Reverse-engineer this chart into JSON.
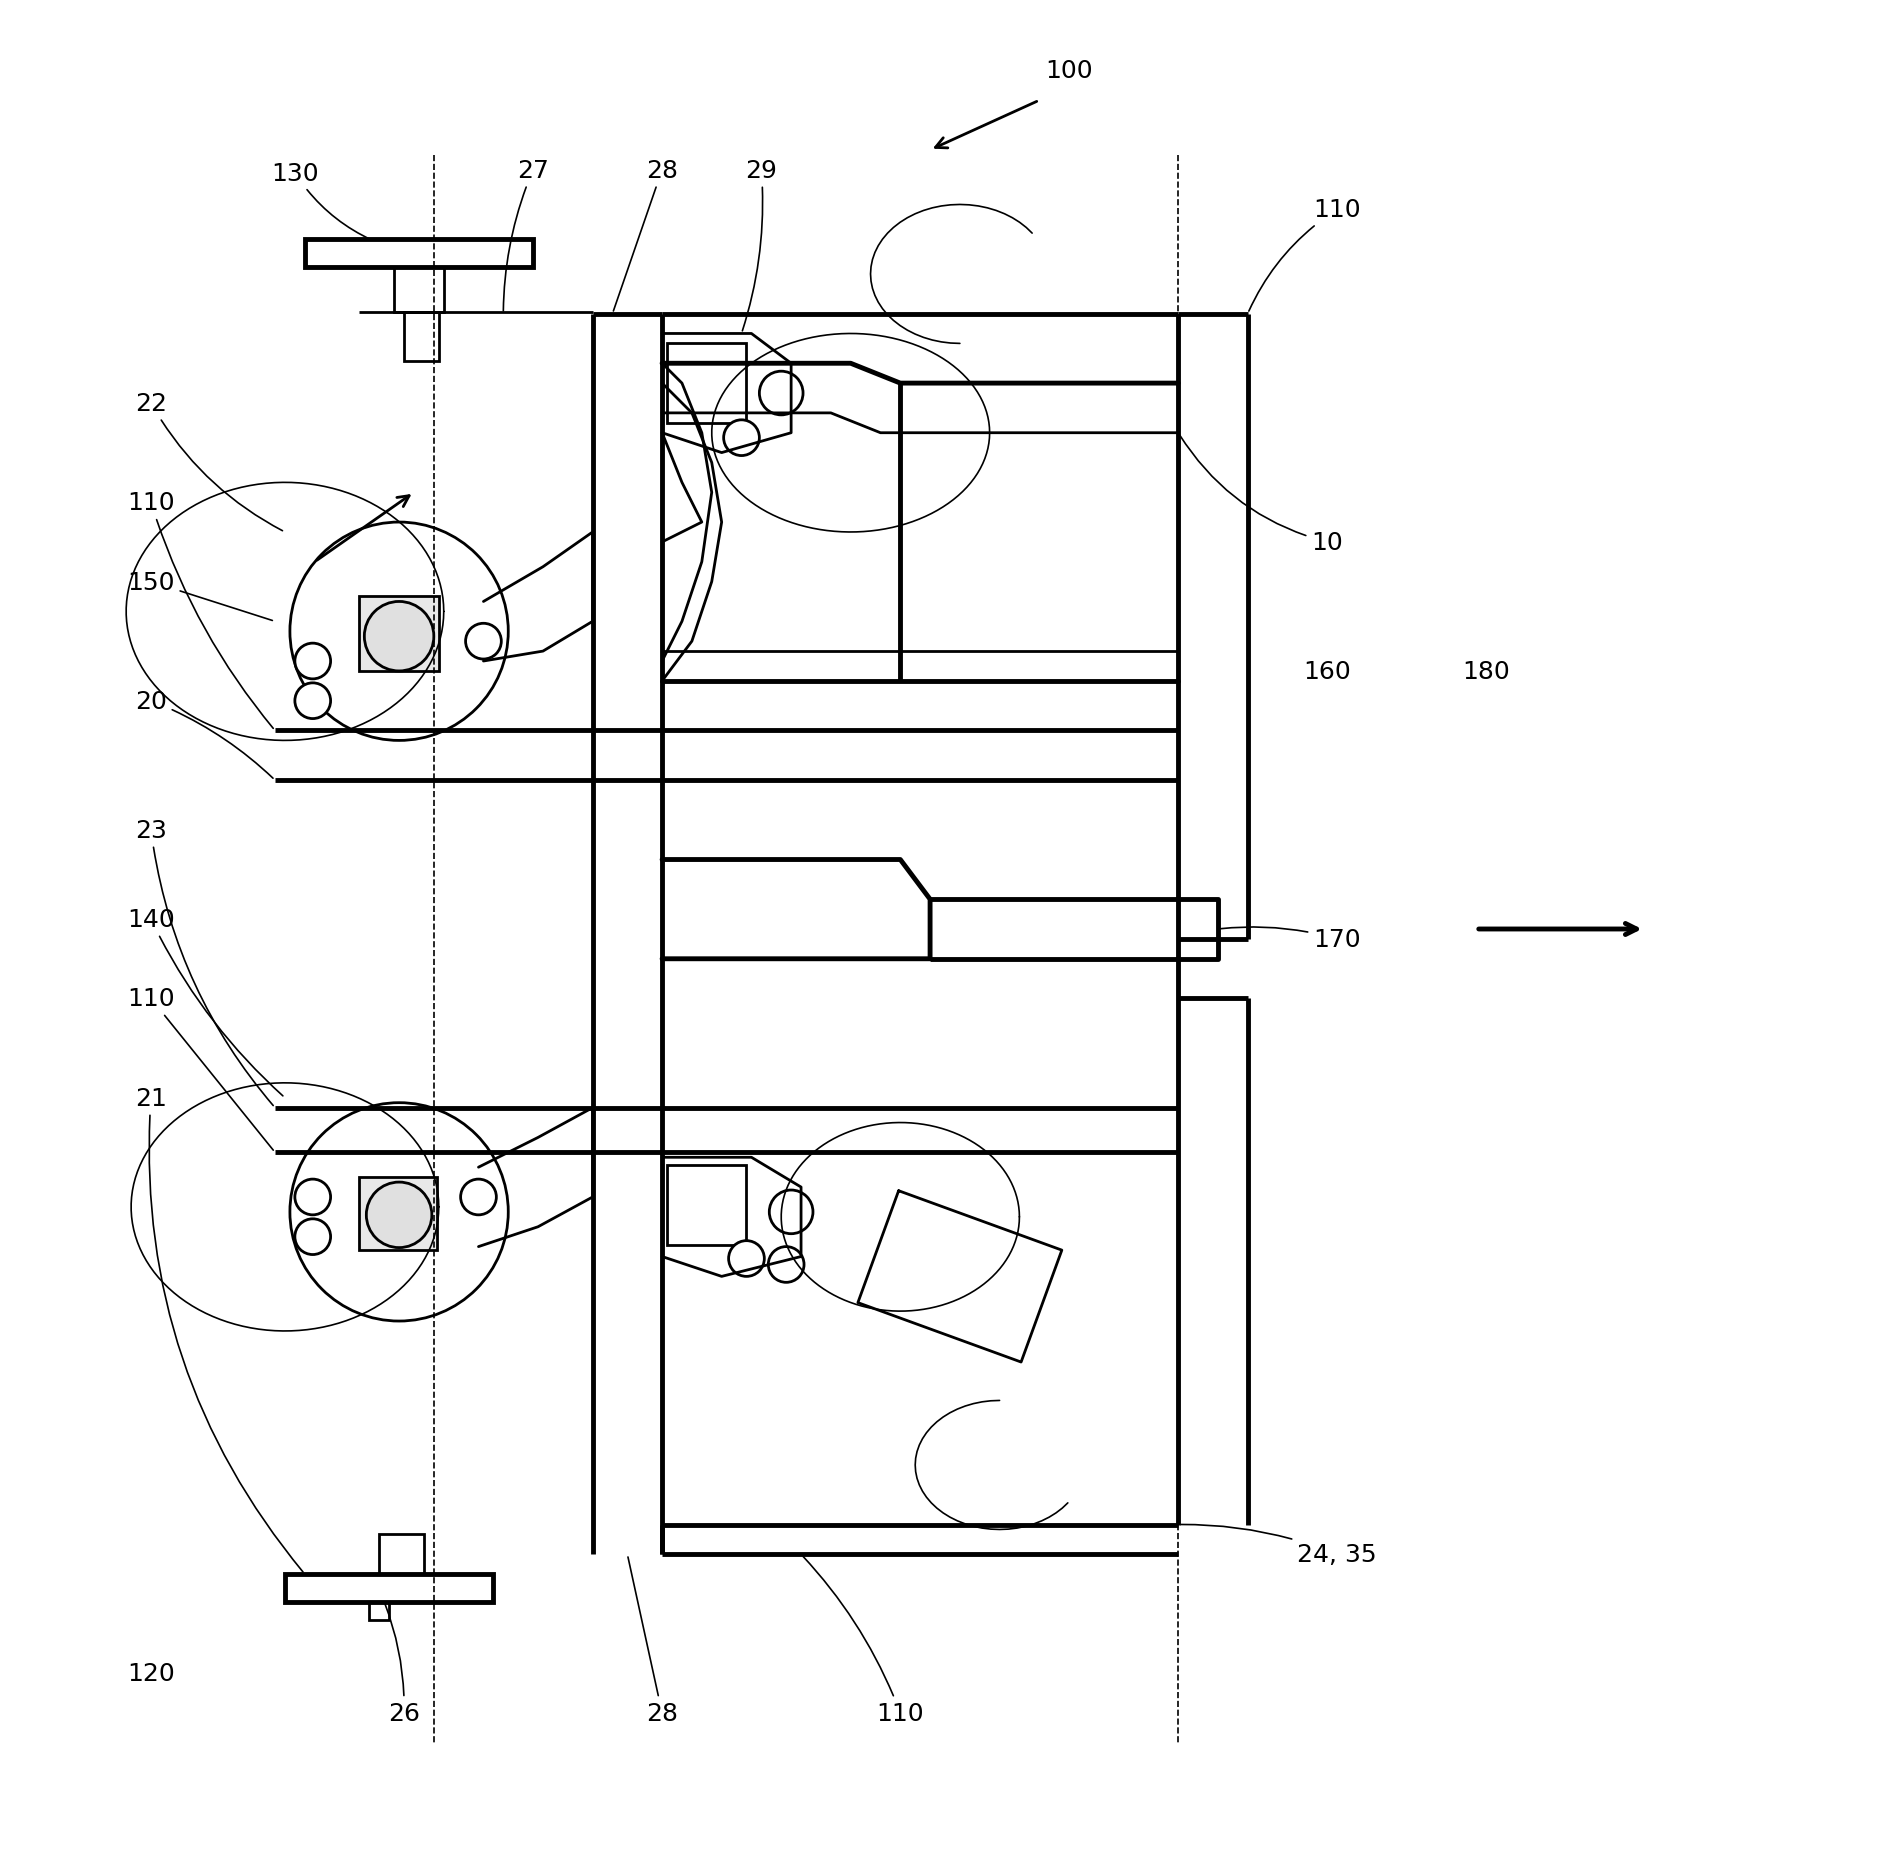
{
  "bg_color": "#ffffff",
  "line_color": "#000000",
  "lw": 2.0,
  "lw_thick": 3.5,
  "lw_thin": 1.2,
  "figsize": [
    18.83,
    18.58
  ],
  "dpi": 100,
  "fontsize": 18
}
